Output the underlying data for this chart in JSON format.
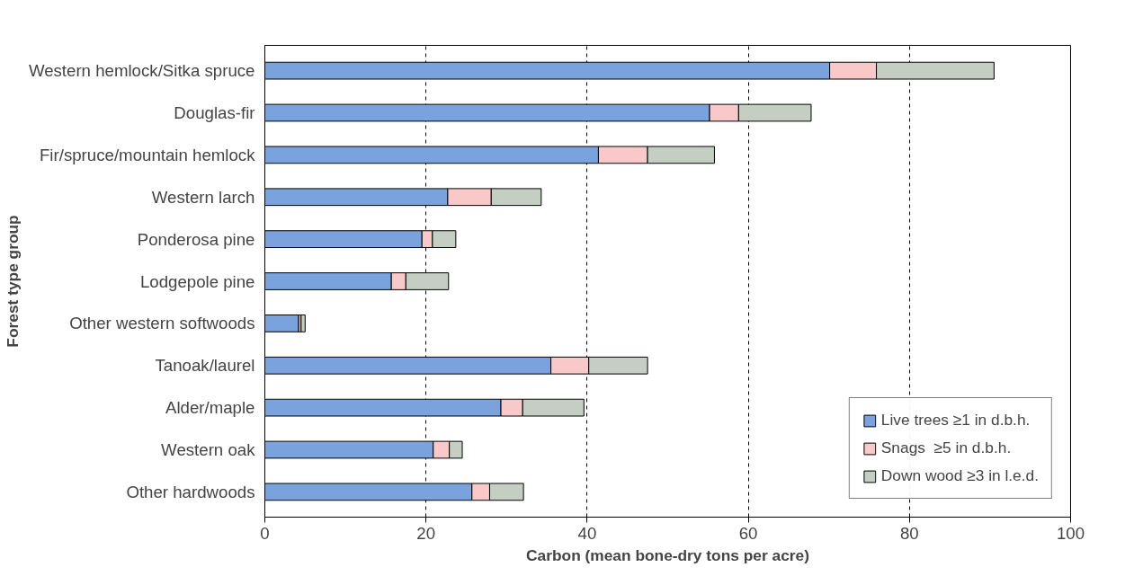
{
  "chart_data": {
    "type": "bar",
    "orientation": "horizontal",
    "stacked": true,
    "xlabel": "Carbon (mean bone-dry tons per acre)",
    "ylabel": "Forest type group",
    "categories": [
      "Western hemlock/Sitka spruce",
      "Douglas-fir",
      "Fir/spruce/mountain hemlock",
      "Western larch",
      "Ponderosa pine",
      "Lodgepole pine",
      "Other western softwoods",
      "Tanoak/laurel",
      "Alder/maple",
      "Western oak",
      "Other hardwoods"
    ],
    "series": [
      {
        "name": "Live trees ≥1 in d.b.h.",
        "color": "#7aa3de",
        "values": [
          70.1,
          55.2,
          41.4,
          22.7,
          19.5,
          15.7,
          4.2,
          35.5,
          29.3,
          20.9,
          25.7
        ]
      },
      {
        "name": "Snags  ≥5 in d.b.h.",
        "color": "#f9c9c9",
        "values": [
          5.8,
          3.6,
          6.1,
          5.4,
          1.3,
          1.8,
          0.3,
          4.7,
          2.7,
          2.0,
          2.2
        ]
      },
      {
        "name": "Down wood ≥3 in l.e.d.",
        "color": "#c5cec3",
        "values": [
          14.6,
          9.0,
          8.3,
          6.2,
          2.9,
          5.3,
          0.5,
          7.3,
          7.6,
          1.6,
          4.2
        ]
      }
    ],
    "xlim": [
      0,
      100
    ],
    "xticks": [
      0,
      20,
      40,
      60,
      80,
      100
    ],
    "grid": "x",
    "legend": "bottom right"
  }
}
